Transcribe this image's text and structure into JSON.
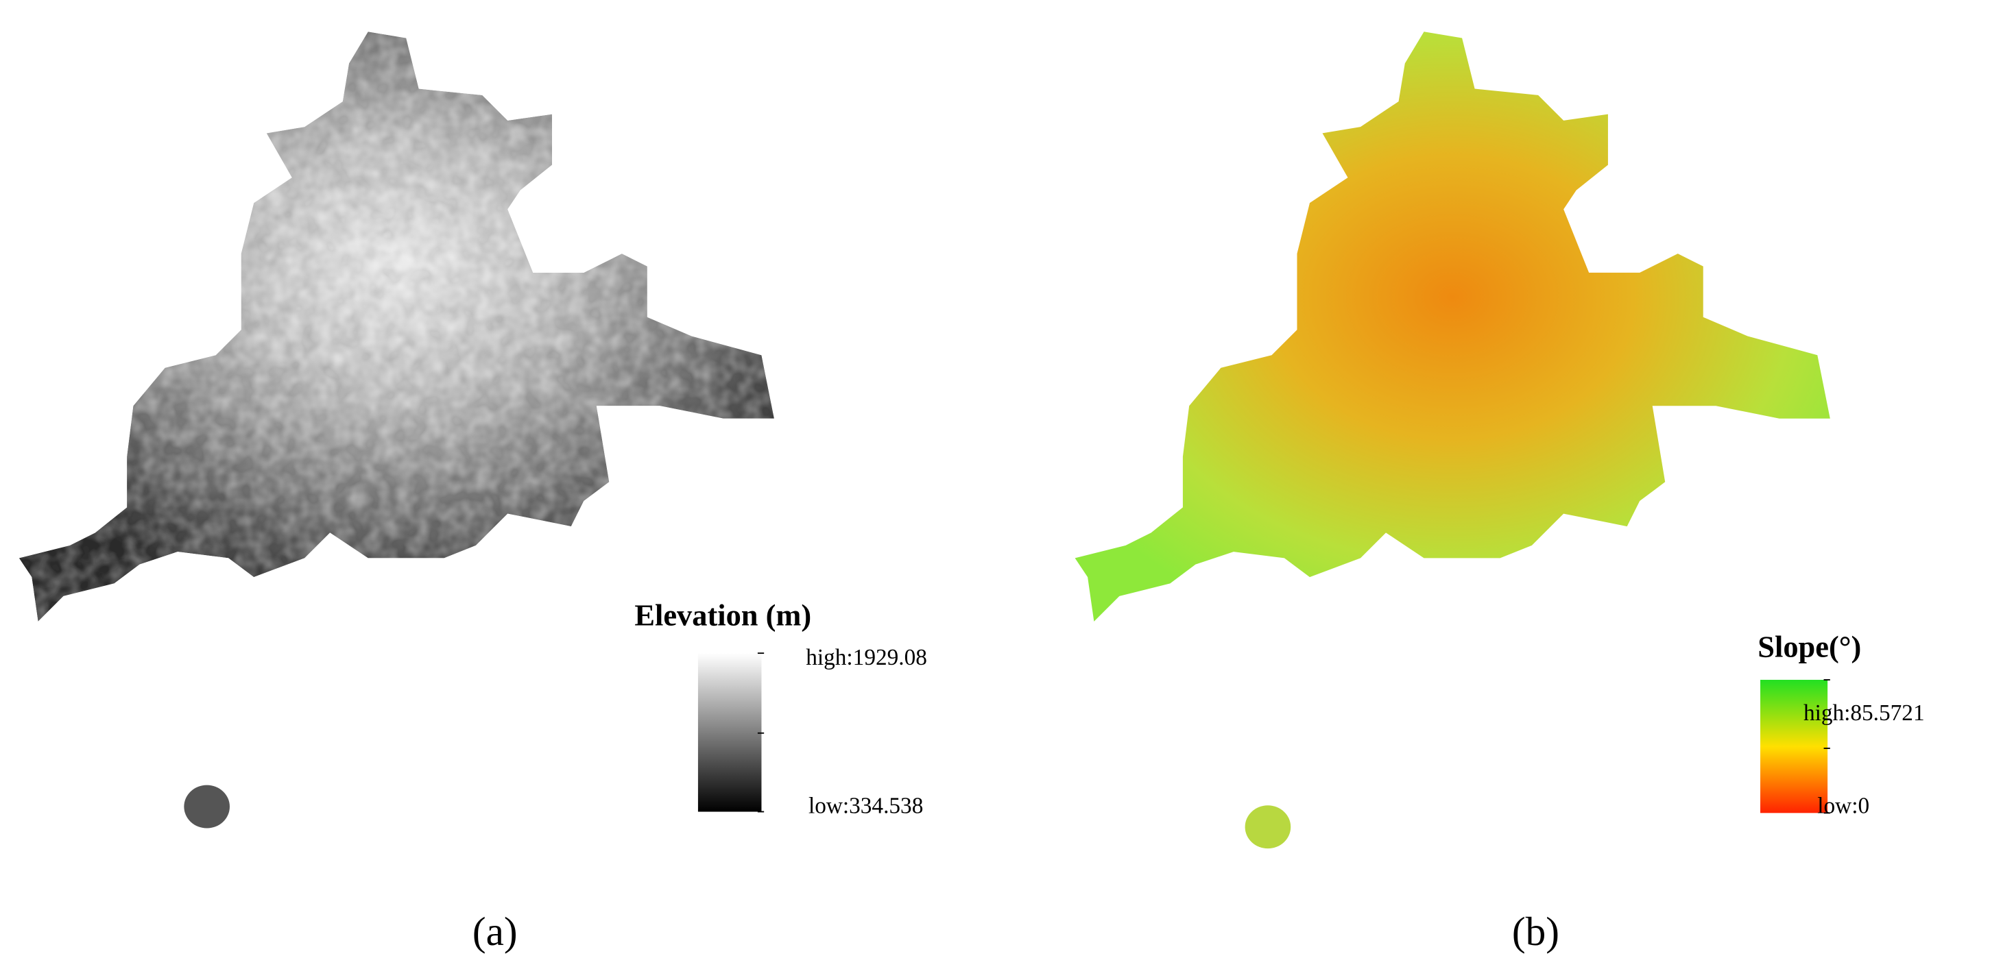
{
  "panels": [
    {
      "legend_title": "Elevation (m)",
      "high_label": "high:1929.08",
      "low_label": "low:334.538",
      "caption": "(a)"
    },
    {
      "legend_title": "Slope(°)",
      "high_label": "high:85.5721",
      "low_label": "low:0",
      "caption": "(b)"
    }
  ]
}
